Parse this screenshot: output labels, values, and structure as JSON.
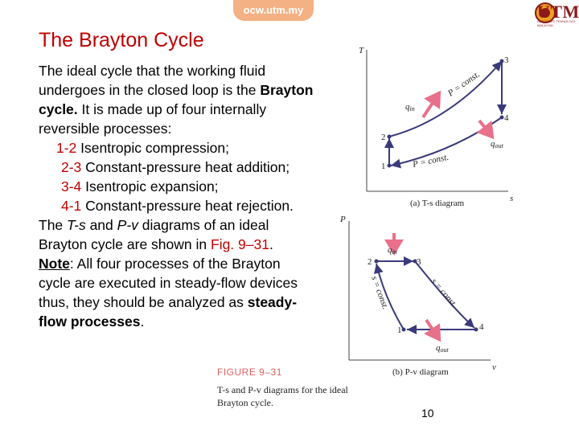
{
  "header": {
    "site": "ocw.utm.my",
    "logo_text": "UTM",
    "logo_sub": "UNIVERSITI TEKNOLOGI MALAYSIA"
  },
  "slide": {
    "title": "The Brayton Cycle",
    "intro": "The ideal cycle that the working fluid undergoes in the closed loop is the ",
    "intro_bold": "Brayton cycle.",
    "intro_rest": "  It is made up of four internally reversible processes:",
    "processes": [
      {
        "num": "1-2",
        "text": " Isentropic compression;"
      },
      {
        "num": "2-3",
        "text": " Constant-pressure heat addition;"
      },
      {
        "num": "3-4",
        "text": " Isentropic expansion;"
      },
      {
        "num": "4-1",
        "text": " Constant-pressure heat rejection."
      }
    ],
    "diag_a": "The ",
    "diag_ts": "T-s",
    "diag_and": " and ",
    "diag_pv": "P-v",
    "diag_b": " diagrams of an ideal Brayton cycle are shown in ",
    "fig_ref": "Fig. 9–31",
    "diag_end": ".",
    "note_label": "Note",
    "note_text": ": All four processes of the Brayton cycle are executed in steady-flow devices thus, they should be analyzed as ",
    "note_bold": "steady-flow processes",
    "note_end": ".",
    "page_number": "10"
  },
  "figure": {
    "label": "FIGURE 9–31",
    "caption_line1": "T-s and P-v diagrams for the ideal",
    "caption_line2": "Brayton cycle.",
    "ts": {
      "y_axis": "T",
      "x_axis": "s",
      "caption": "(a) T-s diagram",
      "points": [
        "1",
        "2",
        "3",
        "4"
      ],
      "p_high": "P = const.",
      "p_low": "P = const.",
      "q_in": "q",
      "q_in_sub": "in",
      "q_out": "q",
      "q_out_sub": "out"
    },
    "pv": {
      "y_axis": "P",
      "x_axis": "v",
      "caption": "(b) P-v diagram",
      "points": [
        "1",
        "2",
        "3",
        "4"
      ],
      "s1": "s = const.",
      "s2": "s = const.",
      "q_in": "q",
      "q_in_sub": "in",
      "q_out": "q",
      "q_out_sub": "out"
    },
    "colors": {
      "accent": "#c00000",
      "arrow": "#e8708a",
      "cycle": "#3a3a7a"
    }
  }
}
